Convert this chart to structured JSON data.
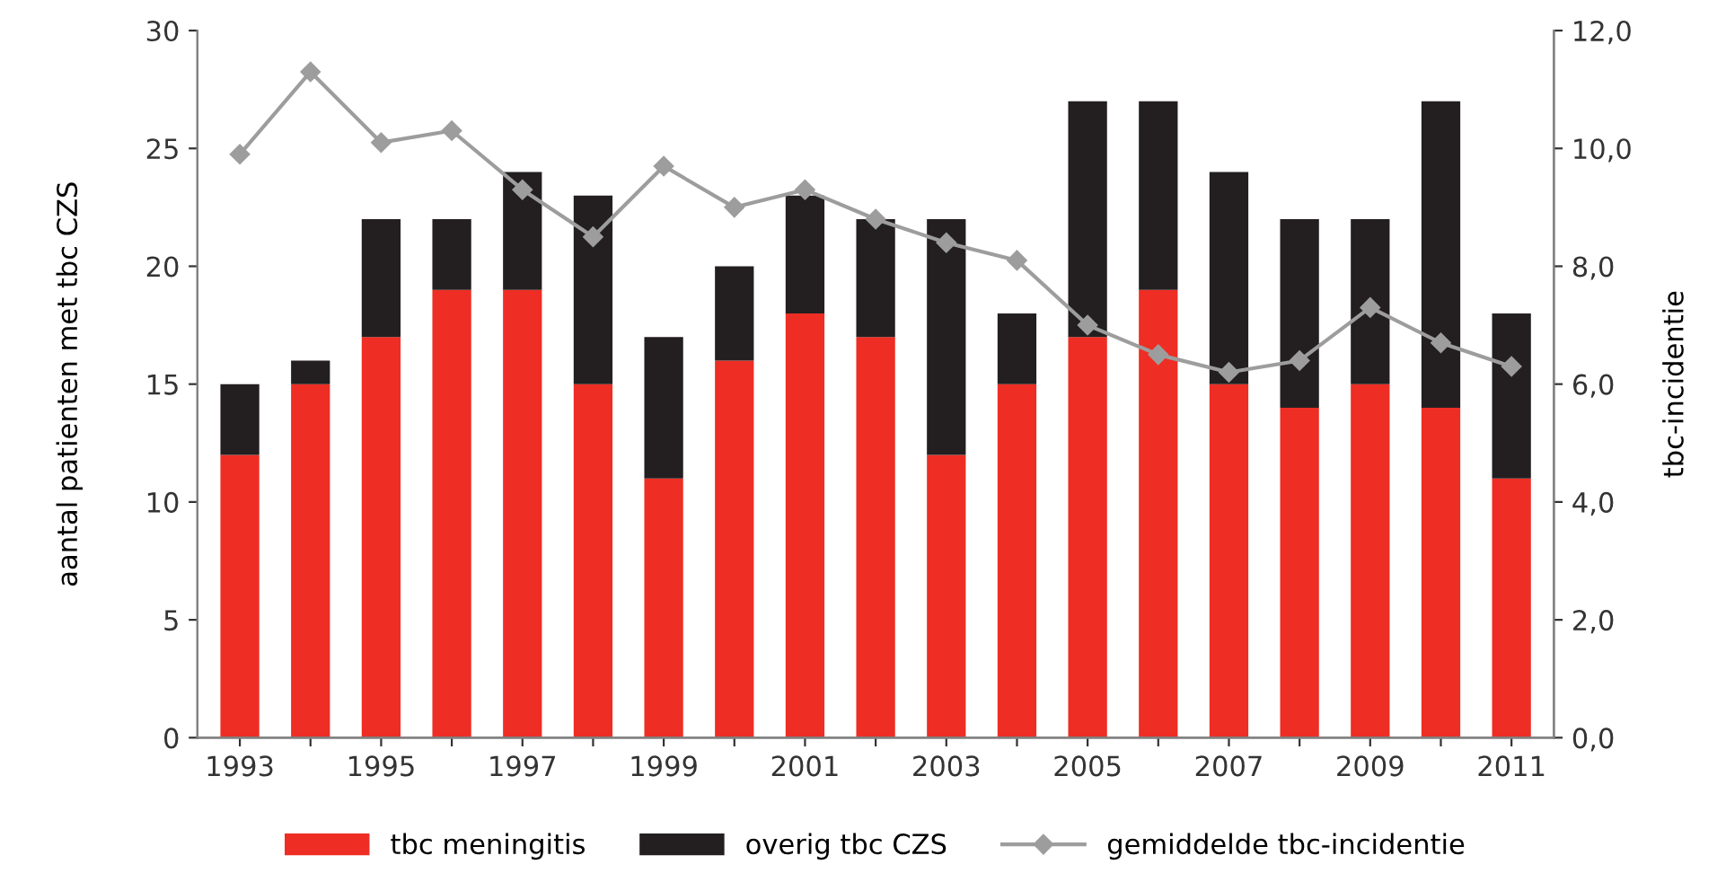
{
  "chart_data": {
    "type": "bar",
    "stacked": true,
    "ylabel": "aantal patienten met tbc CZS",
    "y2label": "tbc-incidentie",
    "categories": [
      "1993",
      null,
      "1995",
      null,
      "1997",
      null,
      "1999",
      null,
      "2001",
      null,
      "2003",
      null,
      "2005",
      null,
      "2007",
      null,
      "2009",
      null,
      "2011"
    ],
    "series": [
      {
        "name": "tbc meningitis",
        "color": "#ee2d24",
        "values": [
          12,
          15,
          17,
          19,
          19,
          15,
          11,
          16,
          18,
          17,
          12,
          15,
          17,
          19,
          15,
          14,
          15,
          14,
          11
        ]
      },
      {
        "name": "overig tbc CZS",
        "color": "#231f20",
        "values": [
          3,
          1,
          5,
          3,
          5,
          8,
          6,
          4,
          5,
          5,
          10,
          3,
          10,
          8,
          9,
          8,
          7,
          13,
          7
        ]
      },
      {
        "name": "gemiddelde tbc-incidentie",
        "type": "line",
        "axis": "y2",
        "color": "#9d9d9d",
        "marker": "diamond",
        "values": [
          9.9,
          11.3,
          10.1,
          10.3,
          9.3,
          8.5,
          9.7,
          9.0,
          9.3,
          8.8,
          8.4,
          8.1,
          7.0,
          6.5,
          6.2,
          6.4,
          7.3,
          6.7,
          6.3
        ]
      }
    ],
    "ylim": [
      0,
      30
    ],
    "yticks": [
      0,
      5,
      10,
      15,
      20,
      25,
      30
    ],
    "y2lim": [
      0,
      12
    ],
    "y2ticks": [
      {
        "value": 0,
        "label": "0,0"
      },
      {
        "value": 2,
        "label": "2,0"
      },
      {
        "value": 4,
        "label": "4,0"
      },
      {
        "value": 6,
        "label": "6,0"
      },
      {
        "value": 8,
        "label": "8,0"
      },
      {
        "value": 10,
        "label": "10,0"
      },
      {
        "value": 12,
        "label": "12,0"
      }
    ],
    "legend": "bottom",
    "grid": false
  }
}
